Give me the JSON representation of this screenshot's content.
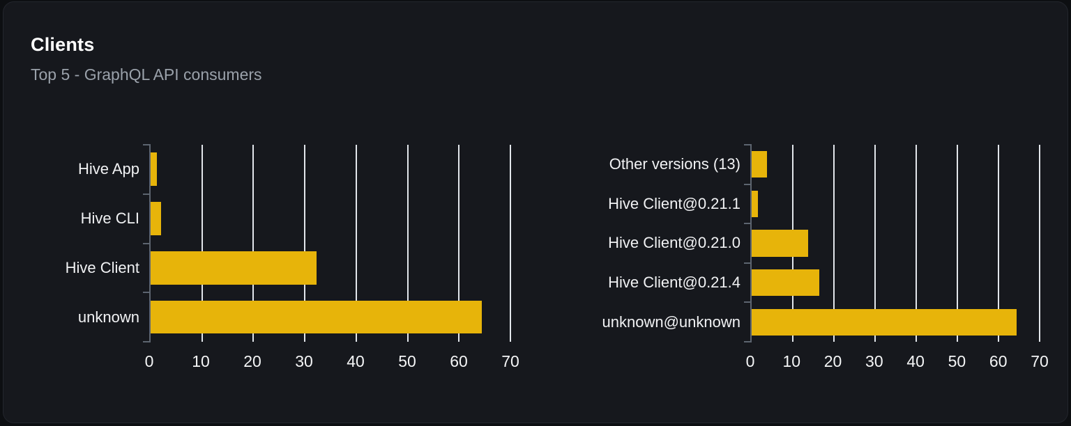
{
  "card": {
    "title": "Clients",
    "subtitle": "Top 5 - GraphQL API consumers"
  },
  "colors": {
    "page_bg": "#0d0f12",
    "card_bg": "#16181d",
    "card_border": "#23262d",
    "bar": "#e7b40a",
    "grid_line": "#e2e6eb",
    "axis_line": "#5d6570",
    "title": "#ffffff",
    "subtitle": "#9aa1aa",
    "category_label": "#f1f2f4",
    "tick_label": "#f4f5f6"
  },
  "chart_data": [
    {
      "type": "bar",
      "orientation": "horizontal",
      "categories": [
        "Hive App",
        "Hive CLI",
        "Hive Client",
        "unknown"
      ],
      "values": [
        1.2,
        2.1,
        32.3,
        64.4
      ],
      "xlim": [
        0,
        70
      ],
      "xticks": [
        0,
        10,
        20,
        30,
        40,
        50,
        60,
        70
      ],
      "grid": true,
      "legend": false
    },
    {
      "type": "bar",
      "orientation": "horizontal",
      "categories": [
        "Other versions (13)",
        "Hive Client@0.21.1",
        "Hive Client@0.21.0",
        "Hive Client@0.21.4",
        "unknown@unknown"
      ],
      "values": [
        3.7,
        1.5,
        13.8,
        16.5,
        64.4
      ],
      "xlim": [
        0,
        70
      ],
      "xticks": [
        0,
        10,
        20,
        30,
        40,
        50,
        60,
        70
      ],
      "grid": true,
      "legend": false
    }
  ]
}
